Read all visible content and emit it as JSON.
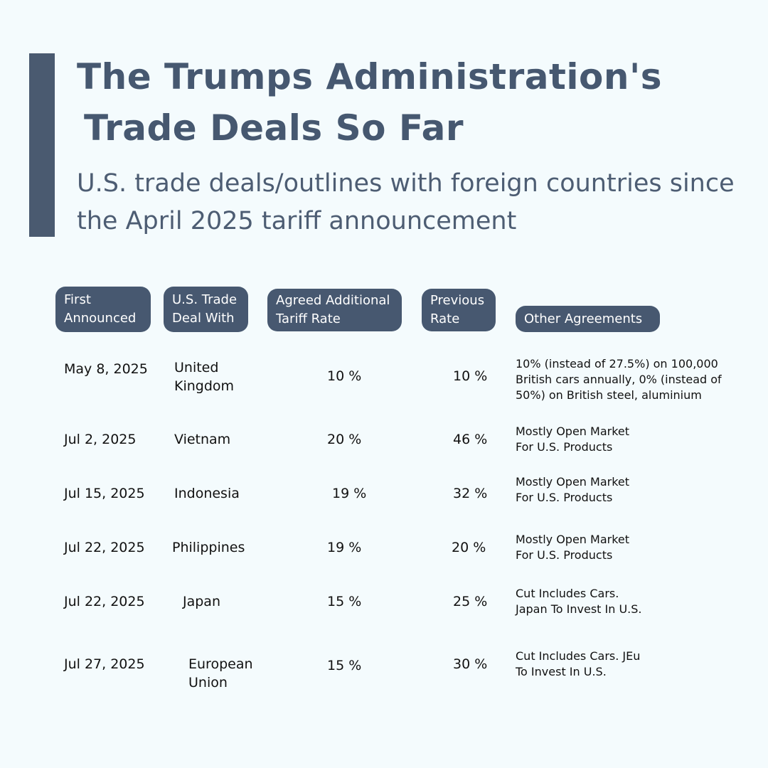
{
  "title": {
    "line1": "The Trumps Administration's",
    "line2": "Trade Deals So Far"
  },
  "subtitle": "U.S. trade deals/outlines with foreign countries since the April 2025 tariff announcement",
  "headers": {
    "first_announced": "First Announced",
    "deal_with": "U.S. Trade Deal With",
    "agreed_rate": "Agreed Additional Tariff Rate",
    "previous_rate": "Previous Rate",
    "other_agreements": "Other Agreements"
  },
  "rows": [
    {
      "date": "May 8, 2025",
      "country": "United Kingdom",
      "agreed": "10 %",
      "previous": "10 %",
      "other": "10% (instead of 27.5%) on 100,000 British cars annually, 0% (instead of 50%) on British steel, aluminium"
    },
    {
      "date": "Jul 2, 2025",
      "country": "Vietnam",
      "agreed": "20 %",
      "previous": "46 %",
      "other": "Mostly Open Market For U.S. Products"
    },
    {
      "date": "Jul 15, 2025",
      "country": "Indonesia",
      "agreed": "19 %",
      "previous": "32 %",
      "other": "Mostly Open Market For U.S. Products"
    },
    {
      "date": "Jul 22, 2025",
      "country": "Philippines",
      "agreed": "19 %",
      "previous": "20 %",
      "other": "Mostly Open Market For U.S. Products"
    },
    {
      "date": "Jul 22, 2025",
      "country": "Japan",
      "agreed": "15 %",
      "previous": "25 %",
      "other": "Cut Includes Cars. Japan To Invest In U.S."
    },
    {
      "date": "Jul 27, 2025",
      "country": "European Union",
      "agreed": "15 %",
      "previous": "30 %",
      "other": "Cut Includes Cars. JEu To Invest In U.S."
    }
  ]
}
